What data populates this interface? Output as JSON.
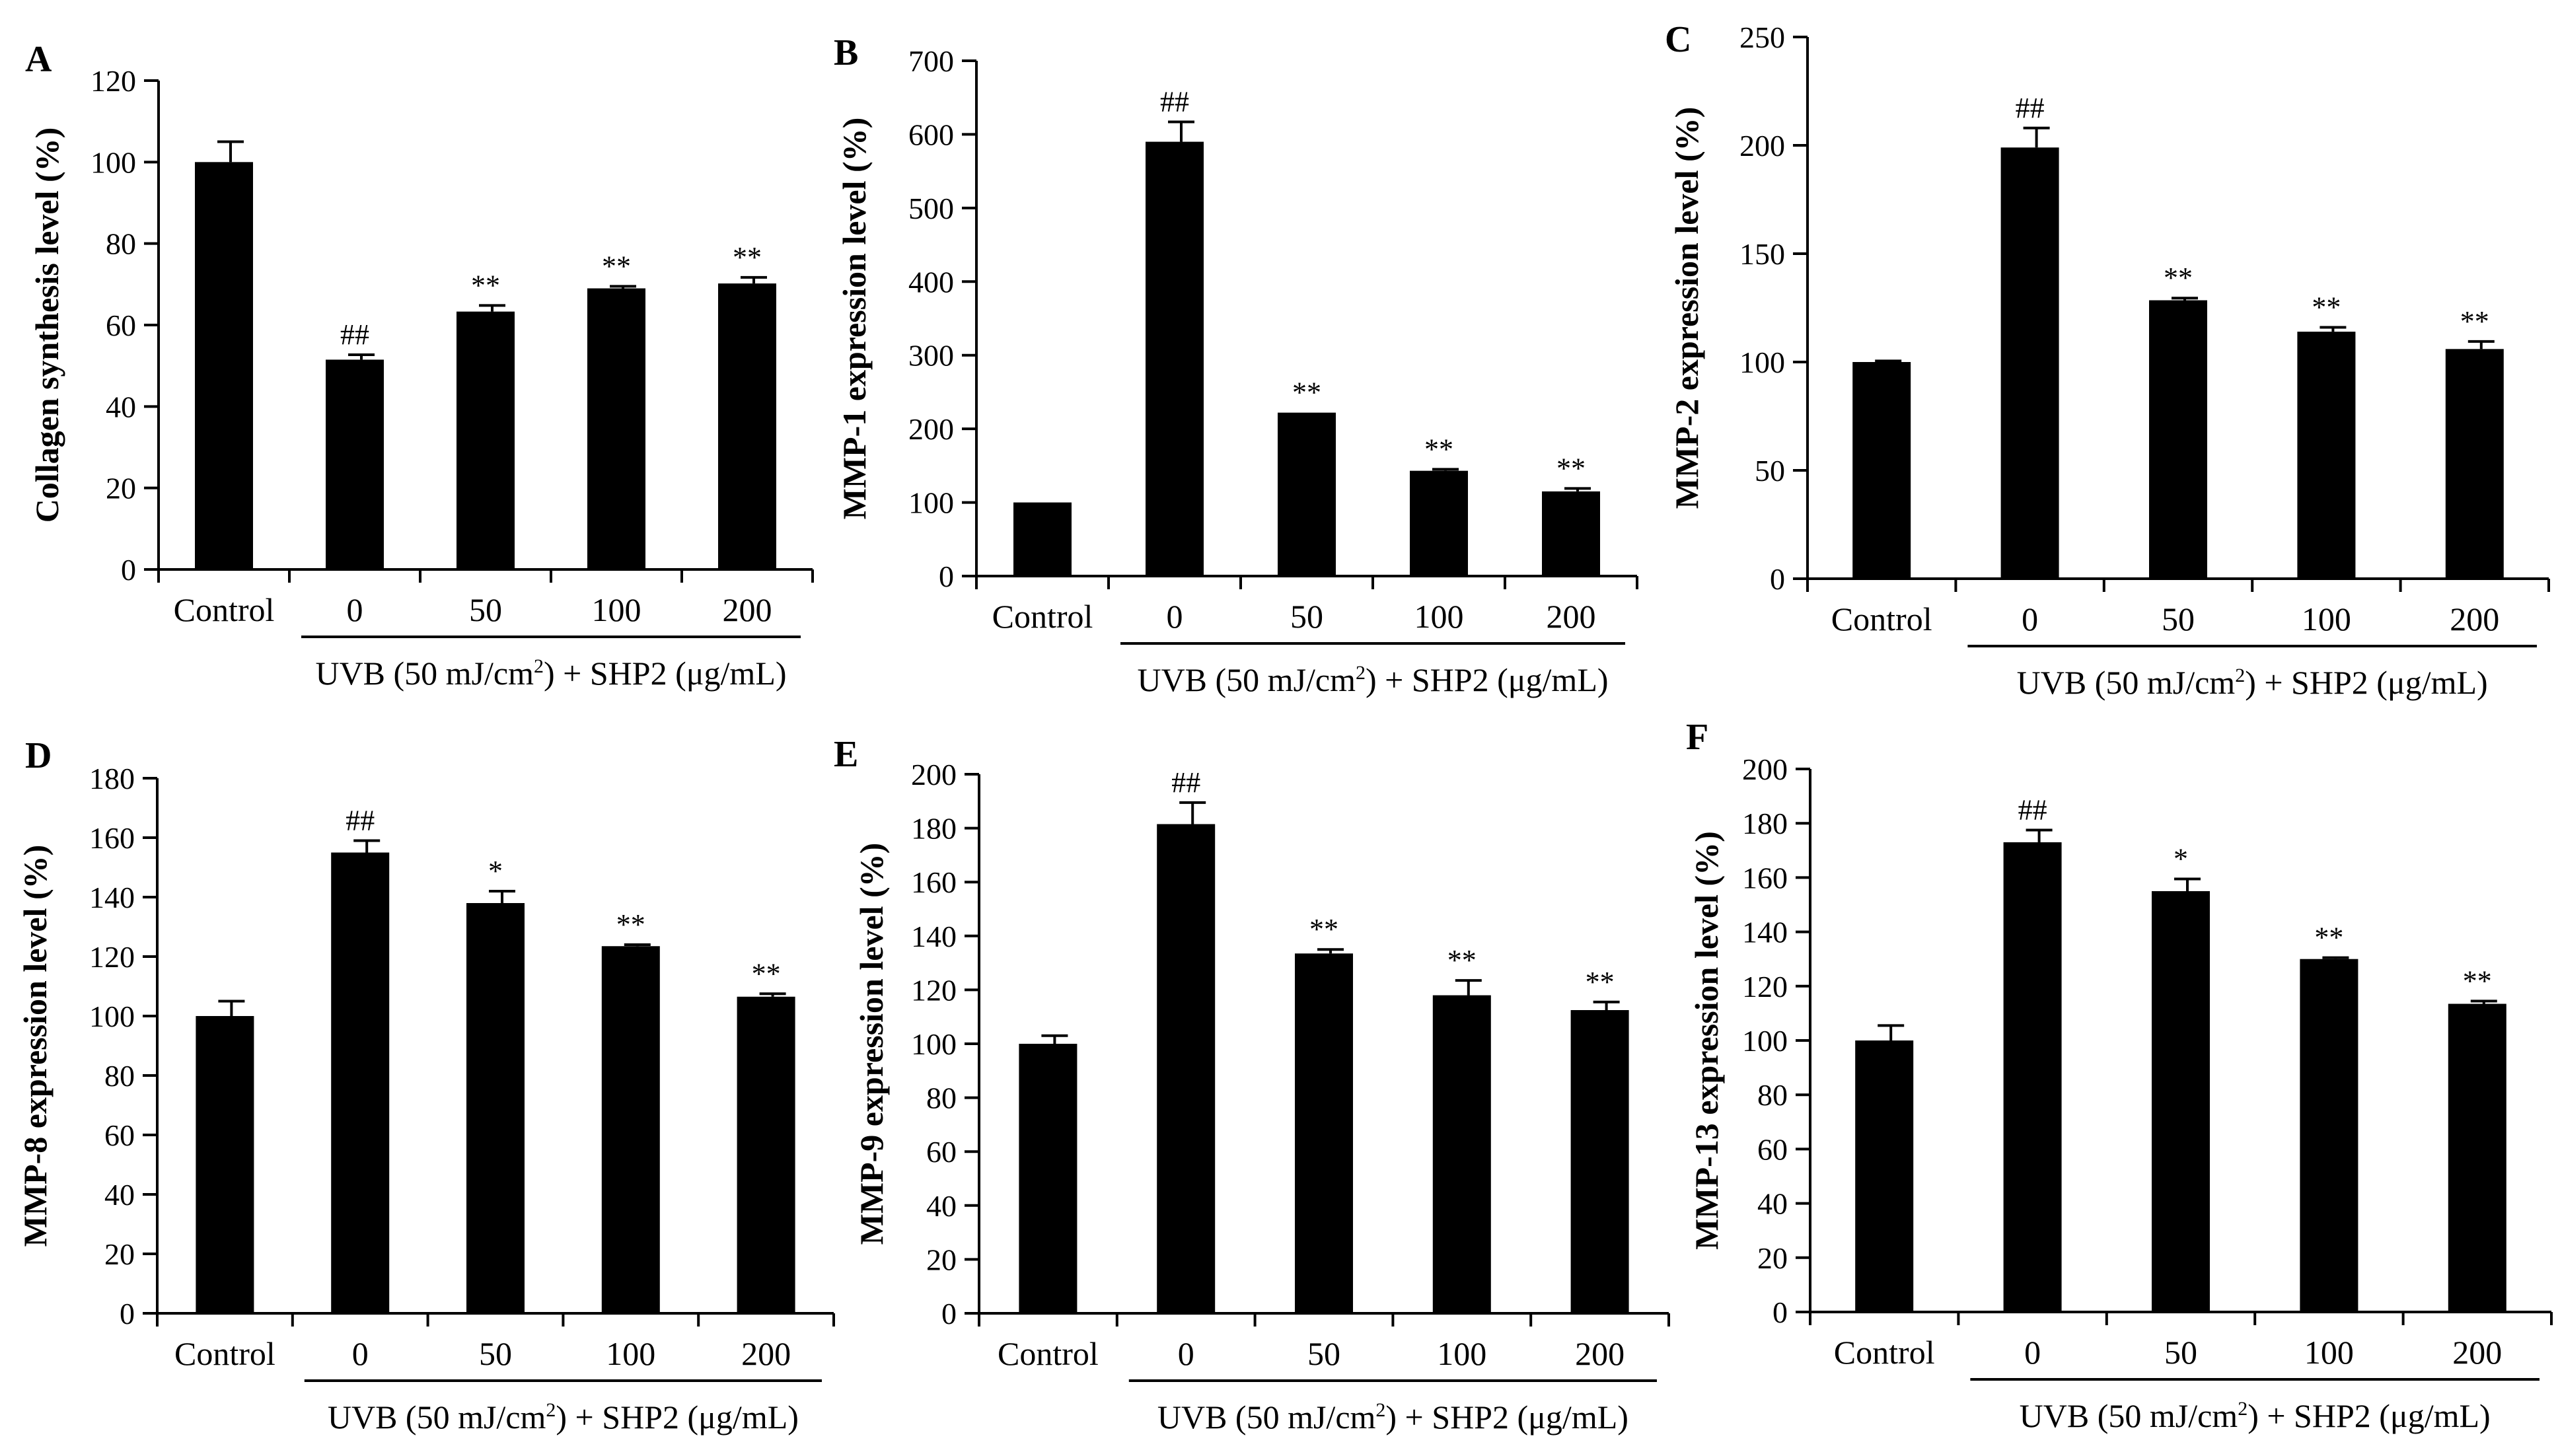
{
  "chart_data": [
    {
      "type": "bar",
      "panel_label": "A",
      "categories": [
        "Control",
        "0",
        "50",
        "100",
        "200"
      ],
      "values": [
        100,
        51.5,
        63.3,
        69,
        70.2
      ],
      "errors": [
        5,
        1.2,
        1.5,
        0.5,
        1.5
      ],
      "annotations": [
        "",
        "##",
        "**",
        "**",
        "**"
      ],
      "ylabel": "Collagen synthesis level (%)",
      "ylim": [
        0,
        120
      ],
      "yticks": [
        0,
        20,
        40,
        60,
        80,
        100,
        120
      ],
      "group_label": {
        "pre": "UVB (50 mJ/cm",
        "sup": "2",
        "post": ") + SHP2 (μg/mL)"
      }
    },
    {
      "type": "bar",
      "panel_label": "B",
      "categories": [
        "Control",
        "0",
        "50",
        "100",
        "200"
      ],
      "values": [
        100,
        590,
        222,
        143,
        115
      ],
      "errors": [
        0,
        27,
        0,
        2,
        4
      ],
      "annotations": [
        "",
        "##",
        "**",
        "**",
        "**"
      ],
      "ylabel": "MMP-1 expression level (%)",
      "ylim": [
        0,
        700
      ],
      "yticks": [
        0,
        100,
        200,
        300,
        400,
        500,
        600,
        700
      ],
      "group_label": {
        "pre": "UVB (50 mJ/cm",
        "sup": "2",
        "post": ") + SHP2 (μg/mL)"
      }
    },
    {
      "type": "bar",
      "panel_label": "C",
      "categories": [
        "Control",
        "0",
        "50",
        "100",
        "200"
      ],
      "values": [
        100,
        199,
        128.5,
        114,
        106
      ],
      "errors": [
        0.5,
        9,
        1,
        2,
        3.5
      ],
      "annotations": [
        "",
        "##",
        "**",
        "**",
        "**"
      ],
      "ylabel": "MMP-2 expression level (%)",
      "ylim": [
        0,
        250
      ],
      "yticks": [
        0,
        50,
        100,
        150,
        200,
        250
      ],
      "group_label": {
        "pre": "UVB (50 mJ/cm",
        "sup": "2",
        "post": ") + SHP2 (μg/mL)"
      }
    },
    {
      "type": "bar",
      "panel_label": "D",
      "categories": [
        "Control",
        "0",
        "50",
        "100",
        "200"
      ],
      "values": [
        100,
        155,
        138,
        123.5,
        106.5
      ],
      "errors": [
        5,
        4,
        4,
        0.5,
        1
      ],
      "annotations": [
        "",
        "##",
        "*",
        "**",
        "**"
      ],
      "ylabel": "MMP-8 expression level (%)",
      "ylim": [
        0,
        180
      ],
      "yticks": [
        0,
        20,
        40,
        60,
        80,
        100,
        120,
        140,
        160,
        180
      ],
      "group_label": {
        "pre": "UVB (50 mJ/cm",
        "sup": "2",
        "post": ") + SHP2 (μg/mL)"
      }
    },
    {
      "type": "bar",
      "panel_label": "E",
      "categories": [
        "Control",
        "0",
        "50",
        "100",
        "200"
      ],
      "values": [
        100,
        181.5,
        133.5,
        118,
        112.5
      ],
      "errors": [
        3,
        8,
        1.5,
        5.5,
        3
      ],
      "annotations": [
        "",
        "##",
        "**",
        "**",
        "**"
      ],
      "ylabel": "MMP-9 expression level (%)",
      "ylim": [
        0,
        200
      ],
      "yticks": [
        0,
        20,
        40,
        60,
        80,
        100,
        120,
        140,
        160,
        180,
        200
      ],
      "group_label": {
        "pre": "UVB (50 mJ/cm",
        "sup": "2",
        "post": ") + SHP2 (μg/mL)"
      }
    },
    {
      "type": "bar",
      "panel_label": "F",
      "categories": [
        "Control",
        "0",
        "50",
        "100",
        "200"
      ],
      "values": [
        100,
        173,
        155,
        130,
        113.5
      ],
      "errors": [
        5.5,
        4.5,
        4.5,
        0.5,
        1
      ],
      "annotations": [
        "",
        "##",
        "*",
        "**",
        "**"
      ],
      "ylabel": "MMP-13 expression level (%)",
      "ylim": [
        0,
        200
      ],
      "yticks": [
        0,
        20,
        40,
        60,
        80,
        100,
        120,
        140,
        160,
        180,
        200
      ],
      "group_label": {
        "pre": "UVB (50 mJ/cm",
        "sup": "2",
        "post": ") + SHP2 (μg/mL)"
      }
    }
  ]
}
